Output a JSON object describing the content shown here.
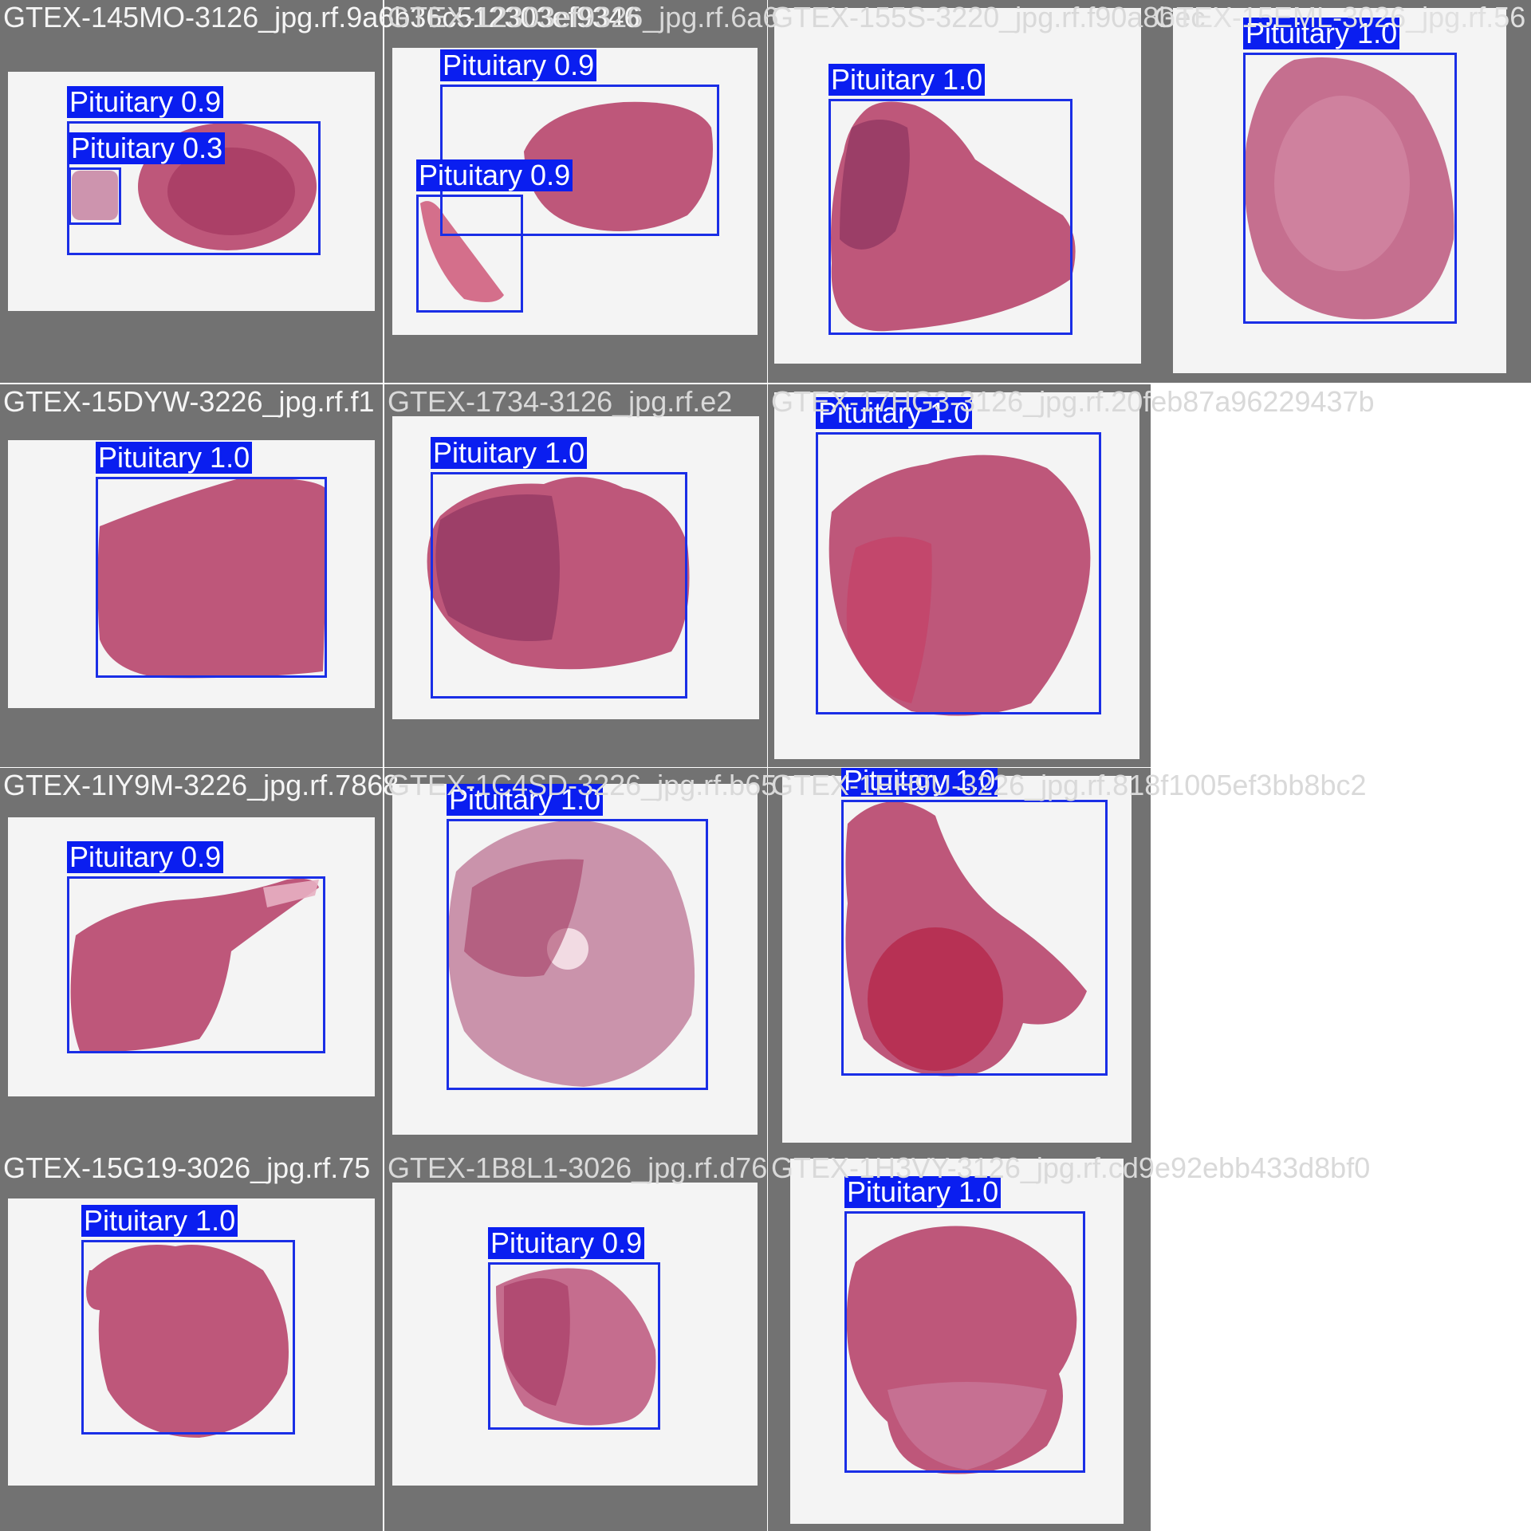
{
  "grid": {
    "background_color": "#727272",
    "box_color": "#1a2ee6",
    "label_bg_color": "#0a1ef0",
    "tissue_color": "#b8496f"
  },
  "tiles": [
    {
      "filename": "GTEX-145MO-3126_jpg.rf.9a6b36c512303ef9346",
      "detections": [
        {
          "label": "Pituitary 0.9"
        },
        {
          "label": "Pituitary 0.3"
        }
      ]
    },
    {
      "filename": "GTEX-12303ef9326_jpg.rf.6a6",
      "detections": [
        {
          "label": "Pituitary 0.9"
        },
        {
          "label": "Pituitary 0.9"
        }
      ]
    },
    {
      "filename": "GTEX-155S-3220_jpg.rf.f90a8bec",
      "detections": [
        {
          "label": "Pituitary 1.0"
        }
      ]
    },
    {
      "filename": "GTEX-15EML-3026_jpg.rf.56",
      "detections": [
        {
          "label": "Pituitary 1.0"
        }
      ]
    },
    {
      "filename": "GTEX-15DYW-3226_jpg.rf.f1",
      "detections": [
        {
          "label": "Pituitary 1.0"
        }
      ]
    },
    {
      "filename": "GTEX-1734-3126_jpg.rf.e2",
      "detections": [
        {
          "label": "Pituitary 1.0"
        }
      ]
    },
    {
      "filename": "GTEX-17HG3-3126_jpg.rf.20feb87a96229437b",
      "detections": [
        {
          "label": "Pituitary 1.0"
        }
      ]
    },
    {
      "filename": "GTEX-1IY9M-3226_jpg.rf.7868",
      "detections": [
        {
          "label": "Pituitary 0.9"
        }
      ]
    },
    {
      "filename": "GTEX-1C4SD-3226_jpg.rf.b65",
      "detections": [
        {
          "label": "Pituitary 1.0"
        }
      ]
    },
    {
      "filename": "GTEX-1EH9U-3226_jpg.rf.818f1005ef3bb8bc2",
      "detections": [
        {
          "label": "Pituitary 1.0"
        }
      ]
    },
    {
      "filename": "GTEX-15G19-3026_jpg.rf.75",
      "detections": [
        {
          "label": "Pituitary 1.0"
        }
      ]
    },
    {
      "filename": "GTEX-1B8L1-3026_jpg.rf.d76",
      "detections": [
        {
          "label": "Pituitary 0.9"
        }
      ]
    },
    {
      "filename": "GTEX-1H3VY-3126_jpg.rf.cd9e92ebb433d8bf0",
      "detections": [
        {
          "label": "Pituitary 1.0"
        }
      ]
    }
  ]
}
